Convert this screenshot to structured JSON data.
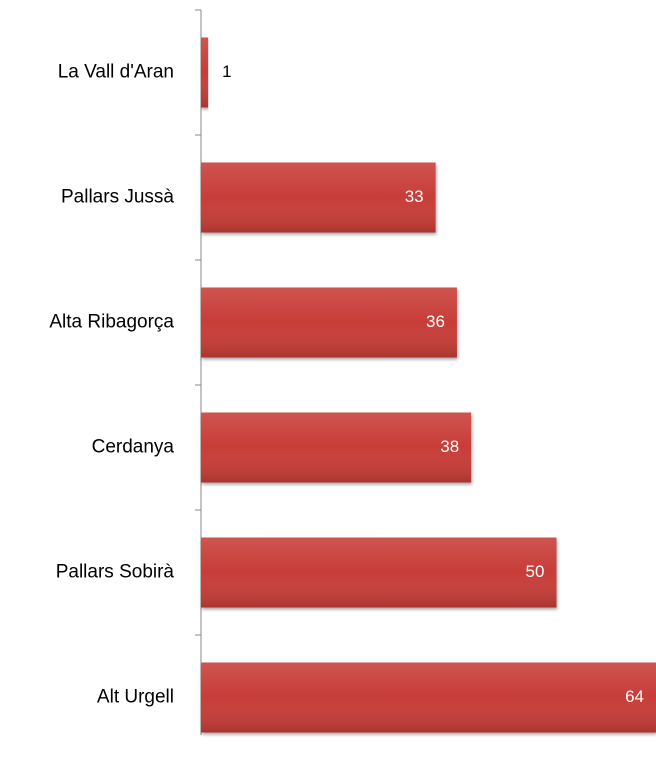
{
  "chart_data": {
    "type": "bar",
    "orientation": "horizontal",
    "categories": [
      "La Vall d'Aran",
      "Pallars Jussà",
      "Alta Ribagorça",
      "Cerdanya",
      "Pallars Sobirà",
      "Alt Urgell"
    ],
    "values": [
      1,
      33,
      36,
      38,
      50,
      64
    ],
    "color": "#c83c39"
  }
}
